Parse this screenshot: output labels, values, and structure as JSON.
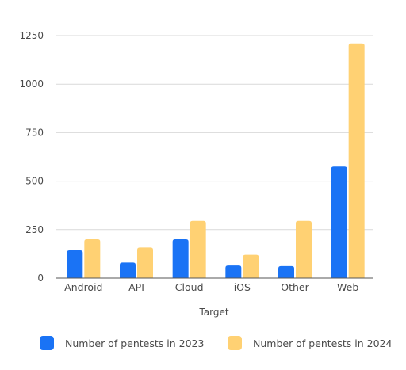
{
  "chart_data": {
    "type": "bar",
    "categories": [
      "Android",
      "API",
      "Cloud",
      "iOS",
      "Other",
      "Web"
    ],
    "series": [
      {
        "name": "Number of pentests in 2023",
        "color": "#1a73f5",
        "values": [
          143,
          80,
          200,
          65,
          62,
          575
        ]
      },
      {
        "name": "Number of pentests in 2024",
        "color": "#ffd173",
        "values": [
          200,
          158,
          295,
          120,
          295,
          1210
        ]
      }
    ],
    "xlabel": "Target",
    "ylabel": "",
    "ylim": [
      0,
      1250
    ],
    "yticks": [
      0,
      250,
      500,
      750,
      1000,
      1250
    ],
    "grid": true,
    "legend": "bottom"
  }
}
